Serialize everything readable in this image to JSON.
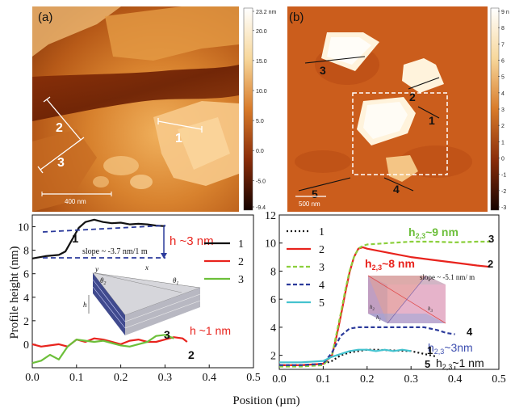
{
  "colors": {
    "afm_low": "#2a0a00",
    "afm_mid": "#b4500f",
    "afm_high": "#fff2d6",
    "black": "#111111",
    "red": "#e8231d",
    "green": "#6cbf3a",
    "green_dash": "#8ccf3c",
    "navy": "#2b3a9b",
    "cyan": "#45c3cf",
    "blue": "#3e4fb0"
  },
  "panel_a": {
    "label": "(a)",
    "colorbar_labels": [
      "23.2 nm",
      "20.0",
      "15.0",
      "10.0",
      "5.0",
      "0.0",
      "-5.0",
      "-9.4"
    ],
    "colorbar_values": [
      23.2,
      20.0,
      15.0,
      10.0,
      5.0,
      0.0,
      -5.0,
      -9.4
    ],
    "scale_bar": "400 nm",
    "line_labels": [
      "1",
      "2",
      "3"
    ]
  },
  "panel_b": {
    "label": "(b)",
    "colorbar_labels": [
      "9 n",
      "8",
      "7",
      "6",
      "5",
      "4",
      "3",
      "2",
      "1",
      "0",
      "-1",
      "-2",
      "-3"
    ],
    "colorbar_values": [
      9,
      8,
      7,
      6,
      5,
      4,
      3,
      2,
      1,
      0,
      -1,
      -2,
      -3
    ],
    "scale_bar": "500 nm",
    "line_labels": [
      "3",
      "2",
      "1",
      "5",
      "4"
    ]
  },
  "chart_data": [
    {
      "type": "line",
      "xlabel": "Position (µm)",
      "ylabel": "Profile height (nm)",
      "xlim": [
        0.0,
        0.5
      ],
      "ylim": [
        -2,
        11
      ],
      "xticks": [
        "0.0",
        "0.1",
        "0.2",
        "0.3",
        "0.4",
        "0.5"
      ],
      "yticks": [
        "0",
        "2",
        "4",
        "6",
        "8",
        "10"
      ],
      "legend": "right",
      "series": [
        {
          "name": "1",
          "color": "#111111",
          "x": [
            0.0,
            0.03,
            0.06,
            0.075,
            0.09,
            0.105,
            0.12,
            0.14,
            0.16,
            0.18,
            0.2,
            0.22,
            0.24,
            0.26,
            0.28,
            0.3
          ],
          "y": [
            7.3,
            7.5,
            7.6,
            7.9,
            8.9,
            9.9,
            10.4,
            10.6,
            10.4,
            10.3,
            10.35,
            10.2,
            10.25,
            10.2,
            10.1,
            10.05
          ]
        },
        {
          "name": "2",
          "color": "#e8231d",
          "x": [
            0.0,
            0.02,
            0.04,
            0.06,
            0.08,
            0.1,
            0.12,
            0.14,
            0.16,
            0.18,
            0.2,
            0.22,
            0.24,
            0.26,
            0.28,
            0.3,
            0.32,
            0.34,
            0.35
          ],
          "y": [
            0.0,
            -0.2,
            -0.1,
            0.0,
            -0.2,
            0.4,
            0.2,
            0.5,
            0.4,
            0.2,
            0.0,
            0.3,
            0.4,
            0.2,
            0.2,
            0.4,
            0.6,
            0.5,
            0.2
          ]
        },
        {
          "name": "3",
          "color": "#6cbf3a",
          "x": [
            0.0,
            0.02,
            0.04,
            0.06,
            0.08,
            0.1,
            0.12,
            0.14,
            0.16,
            0.18,
            0.2,
            0.22,
            0.24,
            0.26,
            0.28,
            0.3,
            0.32
          ],
          "y": [
            -1.6,
            -1.4,
            -0.9,
            -1.3,
            -0.2,
            0.4,
            0.3,
            0.2,
            0.3,
            0.1,
            -0.1,
            -0.2,
            0.0,
            0.2,
            0.7,
            0.8,
            0.5
          ]
        }
      ],
      "annotations": {
        "curve_label_1": "1",
        "slope": "slope ~ -3.7 nm/1 m",
        "h_top": "h ~3 nm",
        "h_bottom": "h ~1 nm",
        "curve_label_3": "3",
        "curve_label_2": "2",
        "inset_y": "y",
        "inset_x": "x",
        "inset_theta2": "θ",
        "inset_theta2_sub": "2",
        "inset_theta1": "θ",
        "inset_theta1_sub": "1",
        "inset_h": "h"
      }
    },
    {
      "type": "line",
      "xlim": [
        0.0,
        0.5
      ],
      "ylim": [
        1,
        12
      ],
      "xticks": [
        "0.0",
        "0.1",
        "0.2",
        "0.3",
        "0.4",
        "0.5"
      ],
      "yticks": [
        "2",
        "4",
        "6",
        "8",
        "10",
        "12"
      ],
      "legend": "top-left",
      "series": [
        {
          "name": "1",
          "color": "#111111",
          "dash": "dots",
          "x": [
            0.0,
            0.05,
            0.1,
            0.12,
            0.14,
            0.16,
            0.18,
            0.2,
            0.22,
            0.26,
            0.3,
            0.33,
            0.36
          ],
          "y": [
            1.3,
            1.3,
            1.4,
            1.6,
            2.0,
            2.2,
            2.3,
            2.4,
            2.4,
            2.35,
            2.3,
            2.1,
            1.9
          ]
        },
        {
          "name": "2",
          "color": "#e8231d",
          "x": [
            0.0,
            0.05,
            0.1,
            0.12,
            0.13,
            0.14,
            0.15,
            0.16,
            0.17,
            0.18,
            0.19,
            0.2,
            0.25,
            0.3,
            0.35,
            0.4,
            0.45,
            0.48
          ],
          "y": [
            1.3,
            1.3,
            1.4,
            2.0,
            3.3,
            4.8,
            6.4,
            7.9,
            9.0,
            9.6,
            9.7,
            9.6,
            9.3,
            9.0,
            8.8,
            8.6,
            8.4,
            8.3
          ]
        },
        {
          "name": "3",
          "color": "#8ccf3c",
          "dash": "dashed",
          "x": [
            0.0,
            0.05,
            0.1,
            0.12,
            0.13,
            0.14,
            0.15,
            0.16,
            0.17,
            0.18,
            0.19,
            0.2,
            0.25,
            0.3,
            0.35,
            0.4,
            0.45,
            0.48
          ],
          "y": [
            1.2,
            1.2,
            1.3,
            2.0,
            3.5,
            5.0,
            6.6,
            8.0,
            9.0,
            9.6,
            9.8,
            9.9,
            10.0,
            10.1,
            10.1,
            10.05,
            10.1,
            10.1
          ]
        },
        {
          "name": "4",
          "color": "#2b3a9b",
          "dash": "dashed",
          "x": [
            0.0,
            0.05,
            0.1,
            0.12,
            0.14,
            0.16,
            0.18,
            0.2,
            0.25,
            0.3,
            0.33,
            0.36,
            0.38,
            0.4
          ],
          "y": [
            1.3,
            1.3,
            1.4,
            2.2,
            3.4,
            3.9,
            4.0,
            4.0,
            4.0,
            4.0,
            4.0,
            3.8,
            3.6,
            3.5
          ]
        },
        {
          "name": "5",
          "color": "#45c3cf",
          "x": [
            0.0,
            0.05,
            0.1,
            0.12,
            0.14,
            0.16,
            0.18,
            0.2,
            0.22,
            0.24,
            0.26,
            0.28,
            0.3
          ],
          "y": [
            1.5,
            1.5,
            1.6,
            1.9,
            2.1,
            2.3,
            2.4,
            2.4,
            2.3,
            2.4,
            2.3,
            2.4,
            2.3
          ]
        }
      ],
      "annotations": {
        "h3": "h",
        "h3_sub": "2,3",
        "h3_val": "~9 nm",
        "h2": "h",
        "h2_sub": "2,3",
        "h2_val": "~8 nm",
        "h4": "h",
        "h4_sub": "2,3",
        "h4_val": "~3nm",
        "h1": "h",
        "h1_sub": "2,3",
        "h1_val": "~1 nm",
        "slope": "slope ~ -5.1 nm/ m",
        "end_3": "3",
        "end_2": "2",
        "end_4": "4",
        "end_1": "1",
        "end_5": "5",
        "inset_h1": "h",
        "inset_h1_sub": "1",
        "inset_h2": "h",
        "inset_h2_sub": "2",
        "inset_h3": "h",
        "inset_h3_sub": "3"
      }
    }
  ]
}
